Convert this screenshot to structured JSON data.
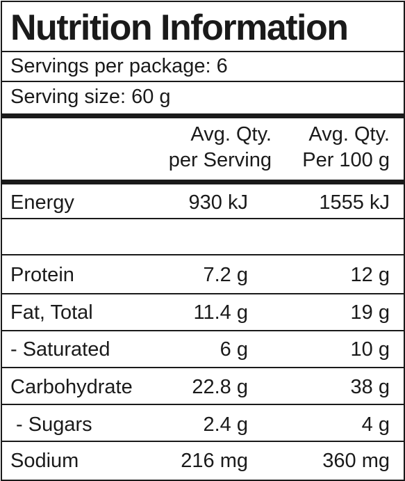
{
  "panel": {
    "title": "Nutrition Information",
    "servings_per_package": "Servings per package: 6",
    "serving_size": "Serving size: 60 g"
  },
  "header": {
    "col1_line1": "Avg. Qty.",
    "col1_line2": "per Serving",
    "col2_line1": "Avg. Qty.",
    "col2_line2": "Per 100 g"
  },
  "rows": [
    {
      "name": "Energy",
      "per_serving": "930 kJ",
      "per_100g": "1555 kJ"
    },
    {
      "name": "",
      "per_serving": "",
      "per_100g": ""
    },
    {
      "name": "Protein",
      "per_serving": "7.2 g",
      "per_100g": "12 g"
    },
    {
      "name": "Fat, Total",
      "per_serving": "11.4 g",
      "per_100g": "19 g"
    },
    {
      "name": "- Saturated",
      "per_serving": "6 g",
      "per_100g": "10 g"
    },
    {
      "name": "Carbohydrate",
      "per_serving": "22.8 g",
      "per_100g": "38 g"
    },
    {
      "name": " - Sugars",
      "per_serving": "2.4 g",
      "per_100g": "4 g"
    },
    {
      "name": "Sodium",
      "per_serving": "216 mg",
      "per_100g": "360 mg"
    }
  ]
}
